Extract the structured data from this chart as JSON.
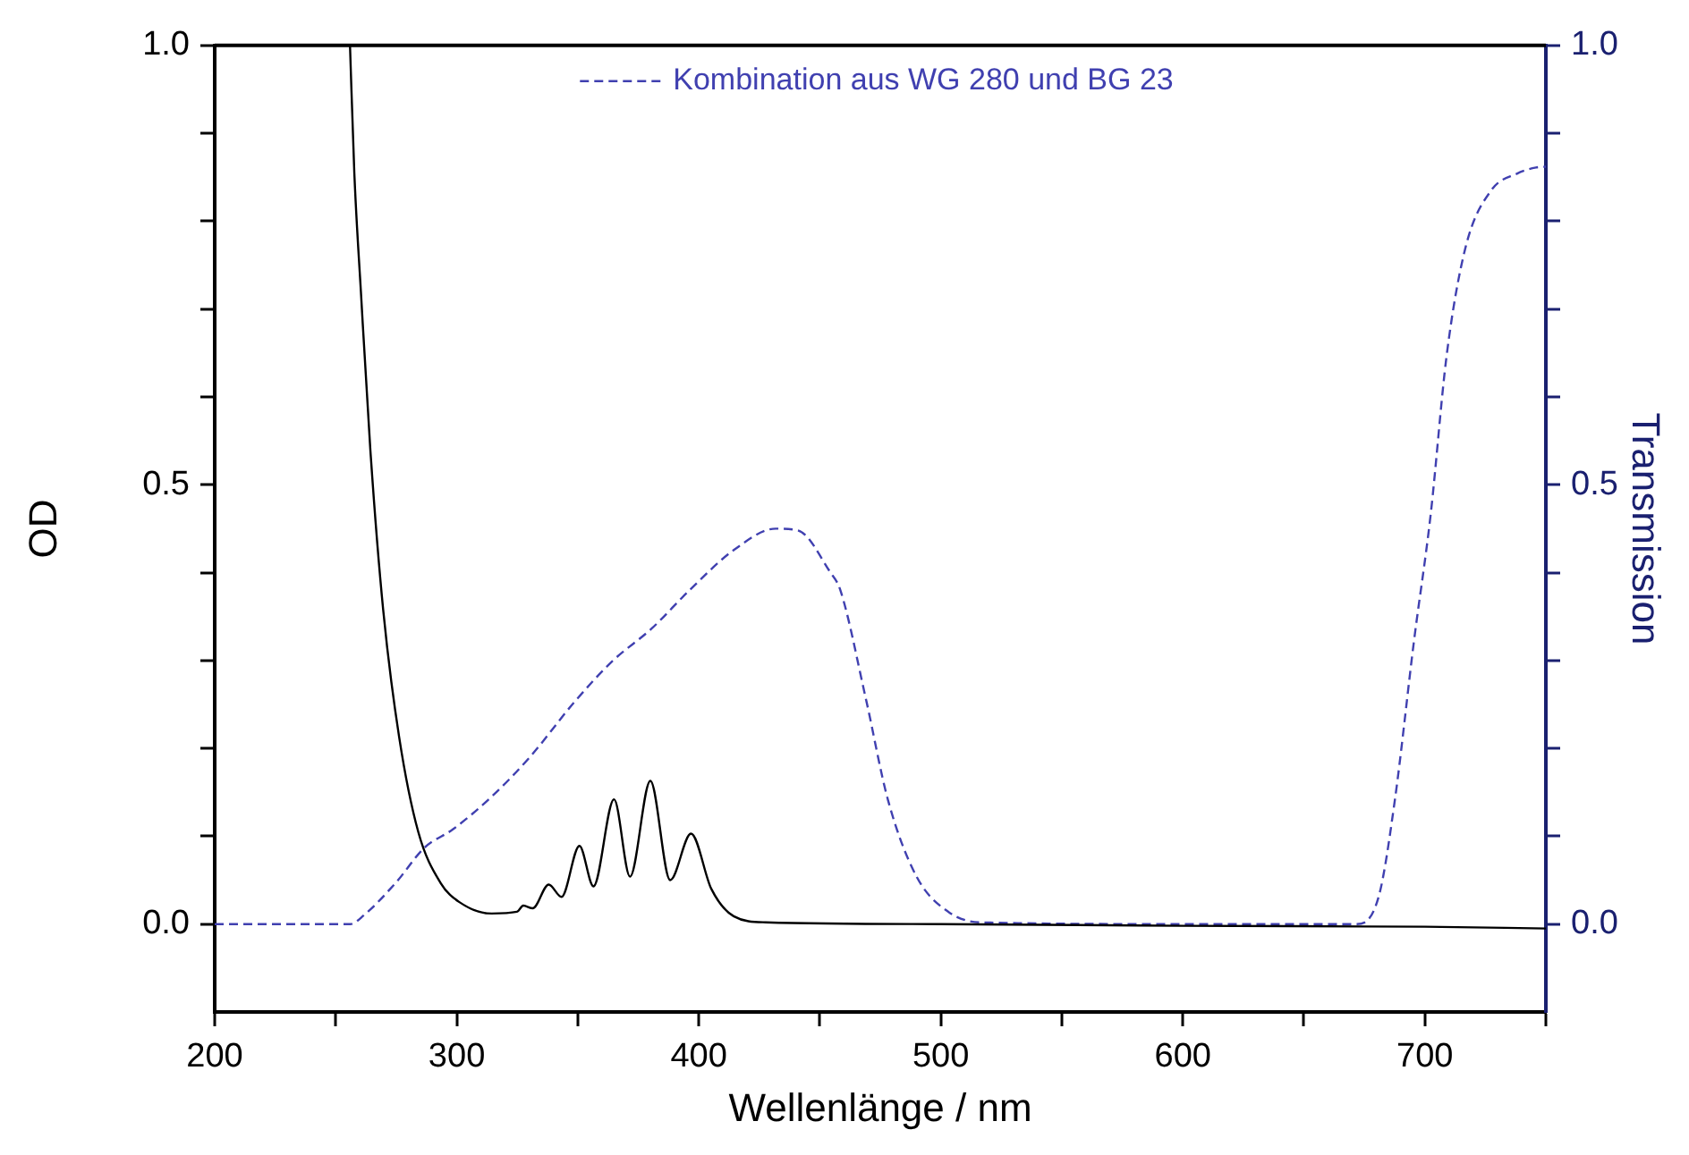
{
  "chart_data": {
    "type": "line",
    "xlabel": "Wellenlänge / nm",
    "ylabel": "OD",
    "y2label": "Transmission",
    "xlim": [
      200,
      750
    ],
    "xticks": [
      200,
      {
        "value": 250,
        "label": null
      },
      300,
      {
        "value": 350,
        "label": null
      },
      400,
      {
        "value": 450,
        "label": null
      },
      500,
      {
        "value": 550,
        "label": null
      },
      600,
      {
        "value": 650,
        "label": null
      },
      700,
      {
        "value": 750,
        "label": null
      }
    ],
    "ylim": [
      -0.1,
      1.0
    ],
    "yticks": [
      {
        "value": 0,
        "label": "0.0"
      },
      {
        "value": 0.1,
        "label": null
      },
      {
        "value": 0.2,
        "label": null
      },
      {
        "value": 0.3,
        "label": null
      },
      {
        "value": 0.4,
        "label": null
      },
      {
        "value": 0.5,
        "label": "0.5"
      },
      {
        "value": 0.6,
        "label": null
      },
      {
        "value": 0.7,
        "label": null
      },
      {
        "value": 0.8,
        "label": null
      },
      {
        "value": 0.9,
        "label": null
      },
      {
        "value": 1.0,
        "label": "1.0"
      }
    ],
    "y2lim": [
      -0.1,
      1.0
    ],
    "y2ticks": [
      {
        "value": 0,
        "label": "0.0"
      },
      {
        "value": 0.1,
        "label": null
      },
      {
        "value": 0.2,
        "label": null
      },
      {
        "value": 0.3,
        "label": null
      },
      {
        "value": 0.4,
        "label": null
      },
      {
        "value": 0.5,
        "label": "0.5"
      },
      {
        "value": 0.6,
        "label": null
      },
      {
        "value": 0.7,
        "label": null
      },
      {
        "value": 0.8,
        "label": null
      },
      {
        "value": 0.9,
        "label": null
      },
      {
        "value": 1.0,
        "label": "1.0"
      }
    ],
    "grid": false,
    "legend": "top",
    "marker": "none",
    "series": [
      {
        "color": "#000000",
        "line_style": "solid",
        "x": [
          255.9,
          257.7,
          260.4,
          264.3,
          269.6,
          276.2,
          284.1,
          293.3,
          301.1,
          314.4,
          324.9,
          327.5,
          331.4,
          338,
          343.3,
          350.7,
          356.5,
          365,
          371.6,
          380,
          388.2,
          396.8,
          405.2,
          414.4,
          427.7,
          500,
          600,
          700,
          750
        ],
        "values": [
          1.0,
          0.854,
          0.72,
          0.54,
          0.358,
          0.213,
          0.105,
          0.047,
          0.025,
          0.012,
          0.014,
          0.021,
          0.018,
          0.045,
          0.031,
          0.089,
          0.043,
          0.142,
          0.054,
          0.163,
          0.05,
          0.103,
          0.04,
          0.009,
          0.002,
          0.0,
          -0.002,
          -0.003,
          -0.005
        ]
      },
      {
        "name": "Kombination aus WG 280 und BG 23",
        "color": "#4040b0",
        "line_style": "dashed",
        "axis": "y2",
        "x": [
          200,
          256,
          261.6,
          274.8,
          286.7,
          298.5,
          314.4,
          330.2,
          348.7,
          364.6,
          380.4,
          396.2,
          414.6,
          431.8,
          441,
          454.2,
          458.5,
          469,
          478.2,
          490,
          503.1,
          516.3,
          600,
          671.6,
          681,
          687.6,
          695.5,
          702.4,
          709,
          716.8,
          727.4,
          738,
          745.9,
          750
        ],
        "values": [
          0,
          0,
          0.01,
          0.047,
          0.087,
          0.108,
          0.145,
          0.19,
          0.253,
          0.3,
          0.336,
          0.38,
          0.426,
          0.45,
          0.448,
          0.401,
          0.38,
          0.257,
          0.141,
          0.054,
          0.014,
          0.002,
          0,
          0,
          0.032,
          0.141,
          0.322,
          0.466,
          0.647,
          0.77,
          0.835,
          0.854,
          0.861,
          0.862
        ]
      }
    ]
  }
}
